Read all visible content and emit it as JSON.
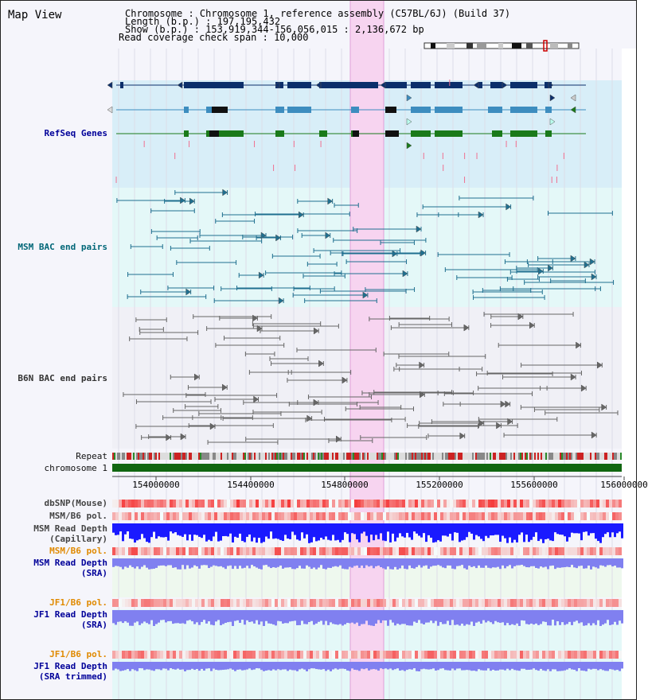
{
  "title": "Map View",
  "info": {
    "line1": "Chromosome     : Chromosome 1, reference assembly (C57BL/6J) (Build 37)",
    "line2": "Length (b.p.) : 197,195,432",
    "line3": "  Show (b.p.) : 153,919,344-156,056,015 : 2,136,672 bp",
    "line4": "Read coverage check span : 10,000"
  },
  "tracks": {
    "refseq": "RefSeq Genes",
    "msm_bac": "MSM BAC end pairs",
    "b6n_bac": "B6N BAC end pairs",
    "repeat": "Repeat",
    "chromosome": "chromosome 1",
    "dbsnp": "dbSNP(Mouse)",
    "msm_pol1": "MSM/B6 pol.",
    "msm_depth_cap_1": "MSM Read Depth",
    "msm_depth_cap_2": "(Capillary)",
    "msm_pol2": "MSM/B6 pol.",
    "msm_depth_sra_1": "MSM Read Depth",
    "msm_depth_sra_2": "(SRA)",
    "jf1_pol1": "JF1/B6 pol.",
    "jf1_depth_1": "JF1 Read Depth",
    "jf1_depth_2": "(SRA)",
    "jf1_pol2": "JF1/B6 pol.",
    "jf1_trim_1": "JF1 Read Depth",
    "jf1_trim_2": "(SRA trimmed)"
  },
  "axis": {
    "ticks": [
      "154000000",
      "154400000",
      "154800000",
      "155200000",
      "155600000",
      "156000000"
    ]
  },
  "colors": {
    "refseq_bg": "#d8eef8",
    "msm_bg": "#e4f8f8",
    "highlight": "#f7d4f0",
    "gene_dark": "#0c2f6b",
    "gene_mid": "#3d8dbf",
    "gene_green": "#1a7a1a",
    "chromosome": "#116611",
    "label_navy": "#000099",
    "label_teal": "#006677",
    "label_gray": "#333333",
    "label_orange": "#e08a00",
    "depth_blue": "#1a1aff",
    "depth_light": "#8080f0"
  }
}
